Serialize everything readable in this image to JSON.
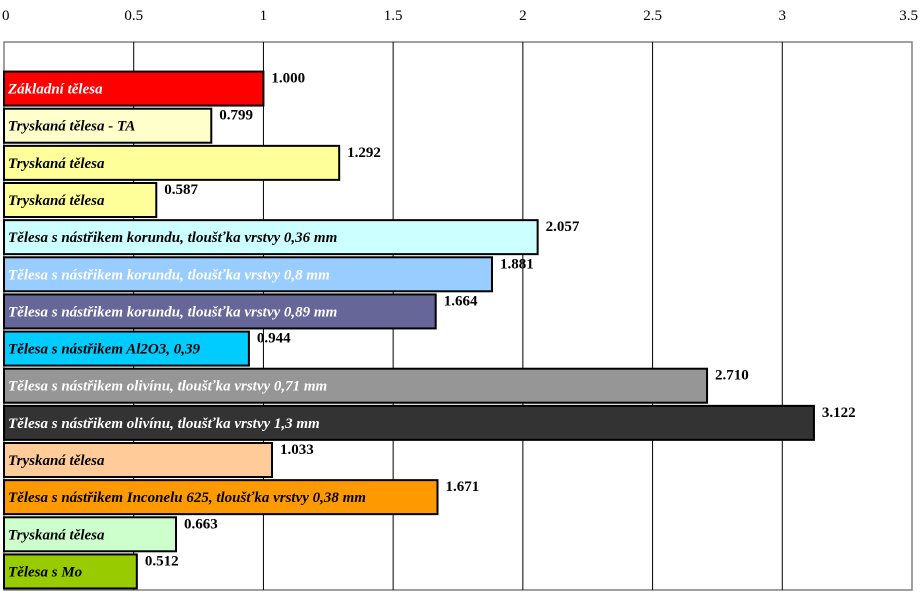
{
  "chart_data": {
    "type": "bar",
    "orientation": "horizontal",
    "title": "",
    "xlabel": "",
    "ylabel": "",
    "xlim": [
      0,
      3.5
    ],
    "ticks": [
      0,
      0.5,
      1,
      1.5,
      2,
      2.5,
      3,
      3.5
    ],
    "tick_labels": [
      "0",
      "0.5",
      "1",
      "1.5",
      "2",
      "2.5",
      "3",
      "3.5"
    ],
    "grid": "vertical",
    "legend": "none",
    "categories": [
      "Základní tělesa",
      "Tryskaná tělesa - TA",
      "Tryskaná tělesa",
      "Tryskaná tělesa",
      "Tělesa s nástřikem korundu, tloušťka vrstvy 0,36 mm",
      "Tělesa s nástřikem korundu, tloušťka vrstvy 0,8 mm",
      "Tělesa s nástřikem korundu, tloušťka vrstvy 0,89 mm",
      "Tělesa s nástřikem Al2O3, 0,39",
      "Tělesa s nástřikem olivínu, tloušťka vrstvy 0,71 mm",
      "Tělesa s nástřikem olivínu, tloušťka vrstvy 1,3 mm",
      "Tryskaná tělesa",
      "Tělesa s nástřikem Inconelu 625, tloušťka vrstvy 0,38 mm",
      "Tryskaná tělesa",
      "Tělesa s Mo"
    ],
    "values": [
      1.0,
      0.799,
      1.292,
      0.587,
      2.057,
      1.881,
      1.664,
      0.944,
      2.71,
      3.122,
      1.033,
      1.671,
      0.663,
      0.512
    ],
    "value_labels": [
      "1.000",
      "0.799",
      "1.292",
      "0.587",
      "2.057",
      "1.881",
      "1.664",
      "0.944",
      "2.710",
      "3.122",
      "1.033",
      "1.671",
      "0.663",
      "0.512"
    ],
    "colors": [
      "#ff0000",
      "#ffffcc",
      "#ffff99",
      "#ffff99",
      "#ccffff",
      "#99ccff",
      "#666699",
      "#00ccff",
      "#969696",
      "#333333",
      "#ffcc99",
      "#ff9900",
      "#ccffcc",
      "#99cc00"
    ],
    "label_colors": [
      "#ffffff",
      "#000000",
      "#000000",
      "#000000",
      "#000000",
      "#ffffff",
      "#ffffff",
      "#000000",
      "#ffffff",
      "#ffffff",
      "#000000",
      "#000000",
      "#000000",
      "#000000"
    ]
  }
}
